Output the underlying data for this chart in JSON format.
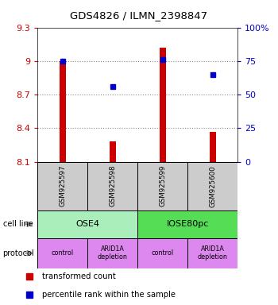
{
  "title": "GDS4826 / ILMN_2398847",
  "samples": [
    "GSM925597",
    "GSM925598",
    "GSM925599",
    "GSM925600"
  ],
  "bar_values": [
    9.0,
    8.28,
    9.12,
    8.37
  ],
  "bar_base": 8.1,
  "dot_values": [
    9.0,
    8.77,
    9.01,
    8.88
  ],
  "ylim_left": [
    8.1,
    9.3
  ],
  "ylim_right": [
    0,
    100
  ],
  "yticks_left": [
    8.1,
    8.4,
    8.7,
    9.0,
    9.3
  ],
  "ytick_labels_left": [
    "8.1",
    "8.4",
    "8.7",
    "9",
    "9.3"
  ],
  "yticks_right": [
    0,
    25,
    50,
    75,
    100
  ],
  "ytick_labels_right": [
    "0",
    "25",
    "50",
    "75",
    "100%"
  ],
  "grid_lines": [
    9.0,
    8.7,
    8.4
  ],
  "bar_color": "#cc0000",
  "dot_color": "#0000cc",
  "cell_line_labels": [
    "OSE4",
    "IOSE80pc"
  ],
  "cell_line_colors": [
    "#aaeebb",
    "#55dd55"
  ],
  "protocol_labels": [
    "control",
    "ARID1A\ndepletion",
    "control",
    "ARID1A\ndepletion"
  ],
  "protocol_color": "#dd88ee",
  "sample_box_color": "#cccccc",
  "grid_color": "#888888",
  "legend_items": [
    {
      "color": "#cc0000",
      "label": "transformed count"
    },
    {
      "color": "#0000cc",
      "label": "percentile rank within the sample"
    }
  ]
}
